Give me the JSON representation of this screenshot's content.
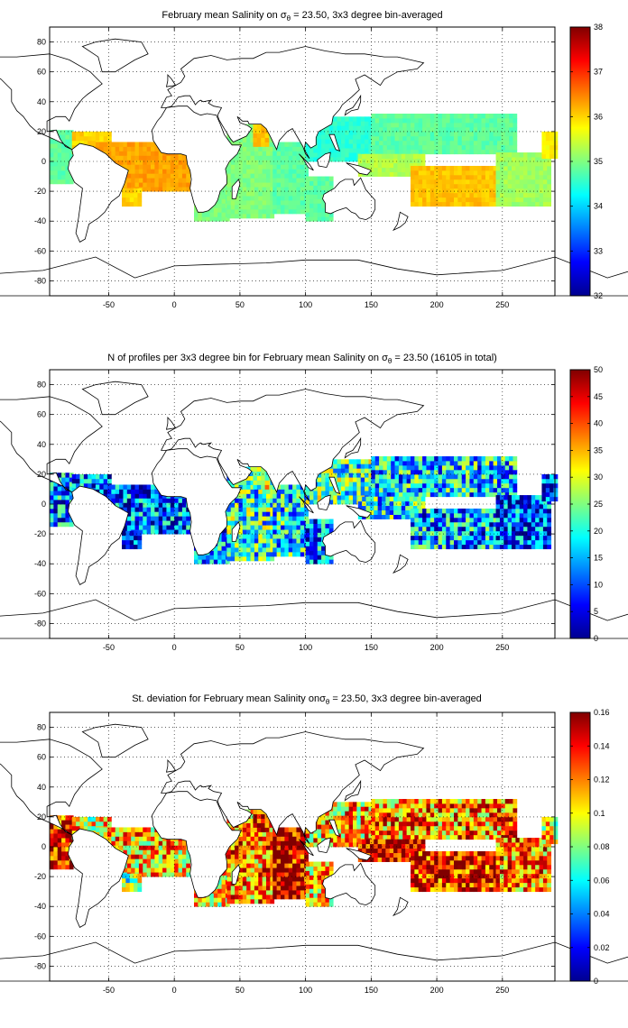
{
  "chart_data": [
    {
      "type": "heatmap",
      "title": "February mean Salinity on σ_θ = 23.50, 3x3 degree bin-averaged",
      "title_parts": {
        "pre": "February mean Salinity on σ",
        "sub": "θ",
        "post": " = 23.50, 3x3 degree bin-averaged"
      },
      "xlim": [
        -95,
        290
      ],
      "ylim": [
        -90,
        90
      ],
      "xticks": [
        -50,
        0,
        50,
        100,
        150,
        200,
        250
      ],
      "yticks": [
        -80,
        -60,
        -40,
        -20,
        0,
        20,
        40,
        60,
        80
      ],
      "grid": true,
      "colormap": "jet",
      "colorbar": {
        "min": 32,
        "max": 38,
        "ticks": [
          32,
          33,
          34,
          35,
          36,
          37,
          38
        ]
      },
      "bin_size_deg": 3,
      "regions": [
        {
          "x": [
            -95,
            -78
          ],
          "y": [
            -15,
            20
          ],
          "value": 34.8
        },
        {
          "x": [
            -78,
            -50
          ],
          "y": [
            5,
            20
          ],
          "value": 36.0
        },
        {
          "x": [
            -60,
            10
          ],
          "y": [
            -20,
            12
          ],
          "value": 36.3
        },
        {
          "x": [
            -40,
            -25
          ],
          "y": [
            -30,
            -18
          ],
          "value": 36.0
        },
        {
          "x": [
            15,
            40
          ],
          "y": [
            -40,
            10
          ],
          "value": 35.0
        },
        {
          "x": [
            40,
            75
          ],
          "y": [
            -38,
            25
          ],
          "value": 35.0
        },
        {
          "x": [
            75,
            100
          ],
          "y": [
            -35,
            12
          ],
          "value": 34.8
        },
        {
          "x": [
            60,
            70
          ],
          "y": [
            10,
            25
          ],
          "value": 36.1
        },
        {
          "x": [
            100,
            120
          ],
          "y": [
            -40,
            -10
          ],
          "value": 34.8
        },
        {
          "x": [
            100,
            150
          ],
          "y": [
            0,
            28
          ],
          "value": 34.5
        },
        {
          "x": [
            150,
            260
          ],
          "y": [
            5,
            30
          ],
          "value": 34.8
        },
        {
          "x": [
            140,
            190
          ],
          "y": [
            -10,
            5
          ],
          "value": 35.3
        },
        {
          "x": [
            180,
            245
          ],
          "y": [
            -30,
            -5
          ],
          "value": 36.1
        },
        {
          "x": [
            245,
            285
          ],
          "y": [
            -30,
            5
          ],
          "value": 35.2
        },
        {
          "x": [
            280,
            290
          ],
          "y": [
            2,
            20
          ],
          "value": 35.8
        }
      ]
    },
    {
      "type": "heatmap",
      "title": "N of profiles per 3x3 degree bin for February mean Salinity on σ_θ = 23.50 (16105 in total)",
      "title_parts": {
        "pre": "N of profiles per 3x3 degree bin for February mean Salinity on σ",
        "sub": "θ",
        "post": " = 23.50 (16105 in total)"
      },
      "total_profiles": 16105,
      "xlim": [
        -95,
        290
      ],
      "ylim": [
        -90,
        90
      ],
      "xticks": [
        -50,
        0,
        50,
        100,
        150,
        200,
        250
      ],
      "yticks": [
        -80,
        -60,
        -40,
        -20,
        0,
        20,
        40,
        60,
        80
      ],
      "grid": true,
      "colormap": "jet",
      "colorbar": {
        "min": 0,
        "max": 50,
        "ticks": [
          0,
          5,
          10,
          15,
          20,
          25,
          30,
          35,
          40,
          45,
          50
        ]
      },
      "bin_size_deg": 3,
      "regions": [
        {
          "x": [
            -95,
            -78
          ],
          "y": [
            -15,
            20
          ],
          "value": 12
        },
        {
          "x": [
            -78,
            -50
          ],
          "y": [
            5,
            20
          ],
          "value": 10
        },
        {
          "x": [
            -60,
            10
          ],
          "y": [
            -20,
            12
          ],
          "value": 11
        },
        {
          "x": [
            -40,
            -25
          ],
          "y": [
            -30,
            -18
          ],
          "value": 6
        },
        {
          "x": [
            15,
            40
          ],
          "y": [
            -40,
            10
          ],
          "value": 14
        },
        {
          "x": [
            40,
            75
          ],
          "y": [
            -38,
            25
          ],
          "value": 20
        },
        {
          "x": [
            75,
            100
          ],
          "y": [
            -35,
            12
          ],
          "value": 18
        },
        {
          "x": [
            60,
            70
          ],
          "y": [
            10,
            25
          ],
          "value": 28
        },
        {
          "x": [
            100,
            120
          ],
          "y": [
            -40,
            -10
          ],
          "value": 12
        },
        {
          "x": [
            100,
            150
          ],
          "y": [
            0,
            28
          ],
          "value": 22
        },
        {
          "x": [
            150,
            260
          ],
          "y": [
            5,
            30
          ],
          "value": 17
        },
        {
          "x": [
            140,
            190
          ],
          "y": [
            -10,
            5
          ],
          "value": 18
        },
        {
          "x": [
            180,
            245
          ],
          "y": [
            -30,
            -5
          ],
          "value": 14
        },
        {
          "x": [
            245,
            285
          ],
          "y": [
            -30,
            5
          ],
          "value": 10
        },
        {
          "x": [
            280,
            290
          ],
          "y": [
            2,
            20
          ],
          "value": 8
        }
      ]
    },
    {
      "type": "heatmap",
      "title": "St. deviation for February mean Salinity onσ_θ = 23.50, 3x3 degree bin-averaged",
      "title_parts": {
        "pre": "St. deviation for February mean Salinity onσ",
        "sub": "θ",
        "post": " = 23.50, 3x3 degree bin-averaged"
      },
      "xlim": [
        -95,
        290
      ],
      "ylim": [
        -90,
        90
      ],
      "xticks": [
        -50,
        0,
        50,
        100,
        150,
        200,
        250
      ],
      "yticks": [
        -80,
        -60,
        -40,
        -20,
        0,
        20,
        40,
        60,
        80
      ],
      "grid": true,
      "colormap": "jet",
      "colorbar": {
        "min": 0,
        "max": 0.16,
        "ticks": [
          0,
          0.02,
          0.04,
          0.06,
          0.08,
          0.1,
          0.12,
          0.14,
          0.16
        ]
      },
      "bin_size_deg": 3,
      "regions": [
        {
          "x": [
            -95,
            -78
          ],
          "y": [
            -15,
            20
          ],
          "value": 0.14
        },
        {
          "x": [
            -78,
            -50
          ],
          "y": [
            5,
            20
          ],
          "value": 0.1
        },
        {
          "x": [
            -60,
            10
          ],
          "y": [
            -20,
            12
          ],
          "value": 0.11
        },
        {
          "x": [
            -40,
            -25
          ],
          "y": [
            -30,
            -18
          ],
          "value": 0.08
        },
        {
          "x": [
            15,
            40
          ],
          "y": [
            -40,
            10
          ],
          "value": 0.1
        },
        {
          "x": [
            40,
            75
          ],
          "y": [
            -38,
            25
          ],
          "value": 0.12
        },
        {
          "x": [
            75,
            100
          ],
          "y": [
            -35,
            12
          ],
          "value": 0.15
        },
        {
          "x": [
            60,
            70
          ],
          "y": [
            10,
            25
          ],
          "value": 0.14
        },
        {
          "x": [
            100,
            120
          ],
          "y": [
            -40,
            -10
          ],
          "value": 0.11
        },
        {
          "x": [
            100,
            150
          ],
          "y": [
            0,
            28
          ],
          "value": 0.11
        },
        {
          "x": [
            150,
            260
          ],
          "y": [
            5,
            30
          ],
          "value": 0.12
        },
        {
          "x": [
            140,
            190
          ],
          "y": [
            -10,
            5
          ],
          "value": 0.15
        },
        {
          "x": [
            180,
            245
          ],
          "y": [
            -30,
            -5
          ],
          "value": 0.14
        },
        {
          "x": [
            245,
            285
          ],
          "y": [
            -30,
            5
          ],
          "value": 0.12
        },
        {
          "x": [
            280,
            290
          ],
          "y": [
            2,
            20
          ],
          "value": 0.1
        }
      ]
    }
  ]
}
